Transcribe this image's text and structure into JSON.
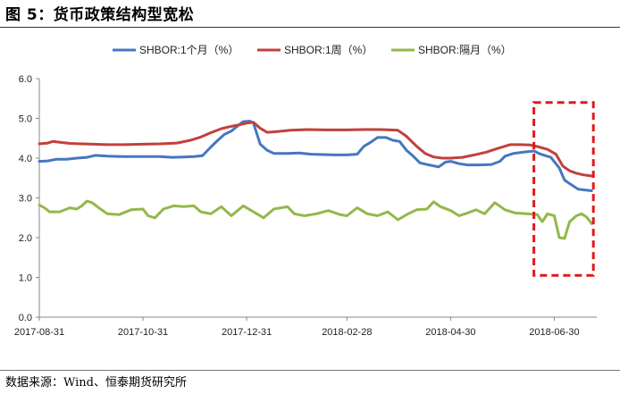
{
  "title": "图 5：货币政策结构型宽松",
  "source": "数据来源：Wind、恒泰期货研究所",
  "colors": {
    "shibor_1m": "#4577c0",
    "shibor_1w": "#c0413c",
    "shibor_o_n": "#93b84a",
    "highlight": "#e0191c",
    "axis": "#888888"
  },
  "chart_data": {
    "type": "line",
    "xlabel": "",
    "ylabel": "",
    "ylim": [
      0,
      6
    ],
    "yticks": [
      "0.0",
      "1.0",
      "2.0",
      "3.0",
      "4.0",
      "5.0",
      "6.0"
    ],
    "xticks": [
      "2017-08-31",
      "2017-10-31",
      "2017-12-31",
      "2018-02-28",
      "2018-04-30",
      "2018-06-30"
    ],
    "grid": false,
    "legend": "top",
    "highlight_box": {
      "x_from": "2018-06-18",
      "x_to": "2018-07-23",
      "y_from": 1.05,
      "y_to": 5.4
    },
    "series": [
      {
        "name": "SHBOR:1个月（%）",
        "color": "#4577c0",
        "points": [
          [
            "2017-08-31",
            3.92
          ],
          [
            "2017-09-05",
            3.93
          ],
          [
            "2017-09-10",
            3.97
          ],
          [
            "2017-09-16",
            3.97
          ],
          [
            "2017-09-22",
            4.0
          ],
          [
            "2017-09-28",
            4.02
          ],
          [
            "2017-10-03",
            4.07
          ],
          [
            "2017-10-10",
            4.05
          ],
          [
            "2017-10-20",
            4.04
          ],
          [
            "2017-10-31",
            4.04
          ],
          [
            "2017-11-10",
            4.04
          ],
          [
            "2017-11-17",
            4.02
          ],
          [
            "2017-11-24",
            4.03
          ],
          [
            "2017-11-30",
            4.04
          ],
          [
            "2017-12-05",
            4.06
          ],
          [
            "2017-12-10",
            4.28
          ],
          [
            "2017-12-14",
            4.45
          ],
          [
            "2017-12-18",
            4.6
          ],
          [
            "2017-12-22",
            4.68
          ],
          [
            "2017-12-26",
            4.82
          ],
          [
            "2017-12-29",
            4.92
          ],
          [
            "2018-01-02",
            4.93
          ],
          [
            "2018-01-04",
            4.88
          ],
          [
            "2018-01-08",
            4.35
          ],
          [
            "2018-01-12",
            4.2
          ],
          [
            "2018-01-16",
            4.12
          ],
          [
            "2018-01-24",
            4.12
          ],
          [
            "2018-01-31",
            4.13
          ],
          [
            "2018-02-07",
            4.1
          ],
          [
            "2018-02-14",
            4.09
          ],
          [
            "2018-02-21",
            4.08
          ],
          [
            "2018-02-28",
            4.08
          ],
          [
            "2018-03-06",
            4.1
          ],
          [
            "2018-03-10",
            4.3
          ],
          [
            "2018-03-14",
            4.4
          ],
          [
            "2018-03-18",
            4.52
          ],
          [
            "2018-03-23",
            4.52
          ],
          [
            "2018-03-27",
            4.45
          ],
          [
            "2018-03-31",
            4.42
          ],
          [
            "2018-04-04",
            4.2
          ],
          [
            "2018-04-08",
            4.05
          ],
          [
            "2018-04-12",
            3.88
          ],
          [
            "2018-04-16",
            3.84
          ],
          [
            "2018-04-23",
            3.78
          ],
          [
            "2018-04-27",
            3.9
          ],
          [
            "2018-04-30",
            3.92
          ],
          [
            "2018-05-05",
            3.86
          ],
          [
            "2018-05-10",
            3.83
          ],
          [
            "2018-05-17",
            3.83
          ],
          [
            "2018-05-24",
            3.84
          ],
          [
            "2018-05-29",
            3.92
          ],
          [
            "2018-06-01",
            4.05
          ],
          [
            "2018-06-06",
            4.12
          ],
          [
            "2018-06-12",
            4.15
          ],
          [
            "2018-06-18",
            4.18
          ],
          [
            "2018-06-22",
            4.1
          ],
          [
            "2018-06-28",
            4.02
          ],
          [
            "2018-07-03",
            3.75
          ],
          [
            "2018-07-06",
            3.45
          ],
          [
            "2018-07-10",
            3.33
          ],
          [
            "2018-07-14",
            3.22
          ],
          [
            "2018-07-18",
            3.2
          ],
          [
            "2018-07-22",
            3.18
          ]
        ]
      },
      {
        "name": "SHBOR:1周（%）",
        "color": "#c0413c",
        "points": [
          [
            "2017-08-31",
            4.36
          ],
          [
            "2017-09-05",
            4.38
          ],
          [
            "2017-09-08",
            4.42
          ],
          [
            "2017-09-12",
            4.4
          ],
          [
            "2017-09-18",
            4.37
          ],
          [
            "2017-09-25",
            4.36
          ],
          [
            "2017-10-02",
            4.35
          ],
          [
            "2017-10-10",
            4.34
          ],
          [
            "2017-10-20",
            4.34
          ],
          [
            "2017-10-31",
            4.35
          ],
          [
            "2017-11-10",
            4.36
          ],
          [
            "2017-11-20",
            4.38
          ],
          [
            "2017-11-28",
            4.45
          ],
          [
            "2017-12-04",
            4.53
          ],
          [
            "2017-12-10",
            4.64
          ],
          [
            "2017-12-16",
            4.74
          ],
          [
            "2017-12-22",
            4.8
          ],
          [
            "2017-12-27",
            4.84
          ],
          [
            "2017-12-31",
            4.88
          ],
          [
            "2018-01-04",
            4.9
          ],
          [
            "2018-01-08",
            4.75
          ],
          [
            "2018-01-12",
            4.65
          ],
          [
            "2018-01-18",
            4.67
          ],
          [
            "2018-01-26",
            4.7
          ],
          [
            "2018-02-05",
            4.72
          ],
          [
            "2018-02-15",
            4.71
          ],
          [
            "2018-02-28",
            4.71
          ],
          [
            "2018-03-10",
            4.72
          ],
          [
            "2018-03-20",
            4.72
          ],
          [
            "2018-03-30",
            4.7
          ],
          [
            "2018-04-04",
            4.55
          ],
          [
            "2018-04-10",
            4.3
          ],
          [
            "2018-04-15",
            4.12
          ],
          [
            "2018-04-20",
            4.03
          ],
          [
            "2018-04-25",
            4.0
          ],
          [
            "2018-04-30",
            4.0
          ],
          [
            "2018-05-07",
            4.02
          ],
          [
            "2018-05-14",
            4.08
          ],
          [
            "2018-05-21",
            4.15
          ],
          [
            "2018-05-28",
            4.25
          ],
          [
            "2018-06-04",
            4.34
          ],
          [
            "2018-06-10",
            4.34
          ],
          [
            "2018-06-16",
            4.33
          ],
          [
            "2018-06-21",
            4.28
          ],
          [
            "2018-06-26",
            4.22
          ],
          [
            "2018-07-01",
            4.1
          ],
          [
            "2018-07-05",
            3.8
          ],
          [
            "2018-07-09",
            3.68
          ],
          [
            "2018-07-13",
            3.62
          ],
          [
            "2018-07-17",
            3.58
          ],
          [
            "2018-07-22",
            3.55
          ]
        ]
      },
      {
        "name": "SHBOR:隔月（%）",
        "color": "#93b84a",
        "points": [
          [
            "2017-08-31",
            2.82
          ],
          [
            "2017-09-03",
            2.75
          ],
          [
            "2017-09-06",
            2.65
          ],
          [
            "2017-09-12",
            2.65
          ],
          [
            "2017-09-18",
            2.75
          ],
          [
            "2017-09-22",
            2.72
          ],
          [
            "2017-09-25",
            2.8
          ],
          [
            "2017-09-28",
            2.92
          ],
          [
            "2017-10-01",
            2.88
          ],
          [
            "2017-10-05",
            2.75
          ],
          [
            "2017-10-10",
            2.6
          ],
          [
            "2017-10-17",
            2.58
          ],
          [
            "2017-10-24",
            2.7
          ],
          [
            "2017-10-31",
            2.72
          ],
          [
            "2017-11-03",
            2.55
          ],
          [
            "2017-11-07",
            2.5
          ],
          [
            "2017-11-12",
            2.72
          ],
          [
            "2017-11-18",
            2.8
          ],
          [
            "2017-11-24",
            2.78
          ],
          [
            "2017-11-30",
            2.8
          ],
          [
            "2017-12-04",
            2.65
          ],
          [
            "2017-12-10",
            2.6
          ],
          [
            "2017-12-16",
            2.78
          ],
          [
            "2017-12-22",
            2.55
          ],
          [
            "2017-12-29",
            2.8
          ],
          [
            "2018-01-04",
            2.65
          ],
          [
            "2018-01-10",
            2.5
          ],
          [
            "2018-01-16",
            2.72
          ],
          [
            "2018-01-24",
            2.78
          ],
          [
            "2018-01-28",
            2.6
          ],
          [
            "2018-02-03",
            2.55
          ],
          [
            "2018-02-10",
            2.6
          ],
          [
            "2018-02-17",
            2.68
          ],
          [
            "2018-02-24",
            2.58
          ],
          [
            "2018-02-28",
            2.55
          ],
          [
            "2018-03-06",
            2.75
          ],
          [
            "2018-03-12",
            2.6
          ],
          [
            "2018-03-18",
            2.55
          ],
          [
            "2018-03-24",
            2.65
          ],
          [
            "2018-03-30",
            2.45
          ],
          [
            "2018-04-05",
            2.6
          ],
          [
            "2018-04-10",
            2.7
          ],
          [
            "2018-04-16",
            2.72
          ],
          [
            "2018-04-20",
            2.9
          ],
          [
            "2018-04-24",
            2.78
          ],
          [
            "2018-04-30",
            2.68
          ],
          [
            "2018-05-05",
            2.55
          ],
          [
            "2018-05-10",
            2.62
          ],
          [
            "2018-05-15",
            2.7
          ],
          [
            "2018-05-20",
            2.6
          ],
          [
            "2018-05-26",
            2.88
          ],
          [
            "2018-06-01",
            2.7
          ],
          [
            "2018-06-07",
            2.62
          ],
          [
            "2018-06-14",
            2.6
          ],
          [
            "2018-06-20",
            2.58
          ],
          [
            "2018-06-23",
            2.4
          ],
          [
            "2018-06-26",
            2.6
          ],
          [
            "2018-06-30",
            2.55
          ],
          [
            "2018-07-03",
            2.0
          ],
          [
            "2018-07-06",
            1.98
          ],
          [
            "2018-07-09",
            2.4
          ],
          [
            "2018-07-13",
            2.55
          ],
          [
            "2018-07-16",
            2.6
          ],
          [
            "2018-07-19",
            2.52
          ],
          [
            "2018-07-22",
            2.35
          ]
        ]
      }
    ]
  }
}
